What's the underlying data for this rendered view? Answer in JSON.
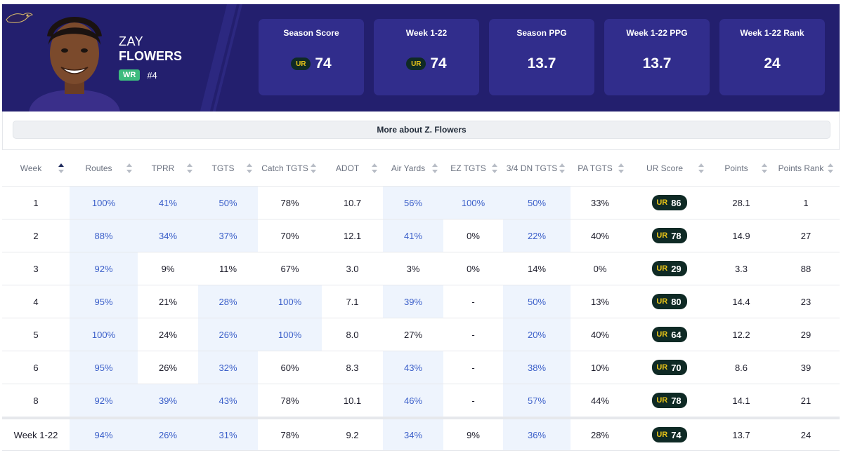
{
  "player": {
    "first_name": "ZAY",
    "last_name": "FLOWERS",
    "position": "WR",
    "number": "#4"
  },
  "cards": [
    {
      "label": "Season Score",
      "value": "74",
      "ur": true
    },
    {
      "label": "Week 1-22",
      "value": "74",
      "ur": true
    },
    {
      "label": "Season PPG",
      "value": "13.7",
      "ur": false
    },
    {
      "label": "Week 1-22 PPG",
      "value": "13.7",
      "ur": false
    },
    {
      "label": "Week 1-22 Rank",
      "value": "24",
      "ur": false
    }
  ],
  "ur_logo_text": "UR",
  "more_button": "More about Z. Flowers",
  "columns": [
    "Week",
    "Routes",
    "TPRR",
    "TGTS",
    "Catch TGTS",
    "ADOT",
    "Air Yards",
    "EZ TGTS",
    "3/4 DN TGTS",
    "PA TGTS",
    "UR Score",
    "Points",
    "Points Rank"
  ],
  "rows": [
    {
      "week": "1",
      "routes": "100%",
      "tprr": "41%",
      "tgts": "50%",
      "catch": "78%",
      "adot": "10.7",
      "air": "56%",
      "ez": "100%",
      "dn": "50%",
      "pa": "33%",
      "ur": "86",
      "points": "28.1",
      "rank": "1"
    },
    {
      "week": "2",
      "routes": "88%",
      "tprr": "34%",
      "tgts": "37%",
      "catch": "70%",
      "adot": "12.1",
      "air": "41%",
      "ez": "0%",
      "dn": "22%",
      "pa": "40%",
      "ur": "78",
      "points": "14.9",
      "rank": "27"
    },
    {
      "week": "3",
      "routes": "92%",
      "tprr": "9%",
      "tgts": "11%",
      "catch": "67%",
      "adot": "3.0",
      "air": "3%",
      "ez": "0%",
      "dn": "14%",
      "pa": "0%",
      "ur": "29",
      "points": "3.3",
      "rank": "88"
    },
    {
      "week": "4",
      "routes": "95%",
      "tprr": "21%",
      "tgts": "28%",
      "catch": "100%",
      "adot": "7.1",
      "air": "39%",
      "ez": "-",
      "dn": "50%",
      "pa": "13%",
      "ur": "80",
      "points": "14.4",
      "rank": "23"
    },
    {
      "week": "5",
      "routes": "100%",
      "tprr": "24%",
      "tgts": "26%",
      "catch": "100%",
      "adot": "8.0",
      "air": "27%",
      "ez": "-",
      "dn": "20%",
      "pa": "40%",
      "ur": "64",
      "points": "12.2",
      "rank": "29"
    },
    {
      "week": "6",
      "routes": "95%",
      "tprr": "26%",
      "tgts": "32%",
      "catch": "60%",
      "adot": "8.3",
      "air": "43%",
      "ez": "-",
      "dn": "38%",
      "pa": "10%",
      "ur": "70",
      "points": "8.6",
      "rank": "39"
    },
    {
      "week": "8",
      "routes": "92%",
      "tprr": "39%",
      "tgts": "43%",
      "catch": "78%",
      "adot": "10.1",
      "air": "46%",
      "ez": "-",
      "dn": "57%",
      "pa": "44%",
      "ur": "78",
      "points": "14.1",
      "rank": "21"
    }
  ],
  "total": {
    "week": "Week 1-22",
    "routes": "94%",
    "tprr": "26%",
    "tgts": "31%",
    "catch": "78%",
    "adot": "9.2",
    "air": "34%",
    "ez": "9%",
    "dn": "36%",
    "pa": "28%",
    "ur": "74",
    "points": "13.7",
    "rank": "24"
  },
  "highlights": [
    [
      "routes",
      "tprr",
      "tgts",
      "air",
      "ez",
      "dn"
    ],
    [
      "routes",
      "tprr",
      "tgts",
      "air",
      "dn"
    ],
    [
      "routes"
    ],
    [
      "routes",
      "tgts",
      "catch",
      "air",
      "dn"
    ],
    [
      "routes",
      "tgts",
      "catch",
      "dn"
    ],
    [
      "routes",
      "tgts",
      "air",
      "dn"
    ],
    [
      "routes",
      "tprr",
      "tgts",
      "air",
      "dn"
    ]
  ],
  "total_highlights": [
    "routes",
    "tprr",
    "tgts",
    "air",
    "dn"
  ]
}
